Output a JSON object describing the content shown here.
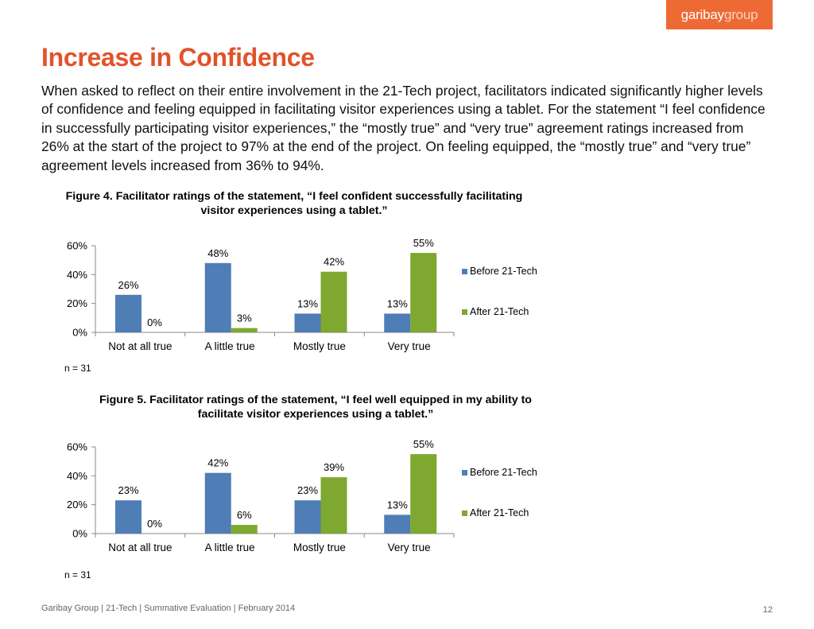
{
  "logo": {
    "part1": "garibay",
    "part2": "group"
  },
  "page": {
    "title": "Increase in Confidence",
    "intro": "When asked to reflect on their entire involvement in the 21-Tech project, facilitators indicated significantly higher levels of confidence and feeling equipped in facilitating visitor experiences using a tablet. For the statement “I feel confidence in successfully participating visitor experiences,” the “mostly true” and “very true” agreement ratings increased from 26% at the start of the project to 97% at the end of the project.  On feeling equipped, the “mostly true” and “very true” agreement levels increased from 36% to 94%.",
    "footer": "Garibay Group | 21-Tech | Summative Evaluation | February 2014",
    "page_number": "12"
  },
  "colors": {
    "title": "#e2522a",
    "before": "#4f7db5",
    "after": "#7ea82f",
    "axis": "#888888"
  },
  "chart_data": [
    {
      "type": "bar",
      "title": "Figure 4. Facilitator ratings of the statement, “I feel confident successfully facilitating visitor experiences using a tablet.”",
      "categories": [
        "Not at all true",
        "A little true",
        "Mostly true",
        "Very true"
      ],
      "series": [
        {
          "name": "Before 21-Tech",
          "values": [
            26,
            48,
            13,
            13
          ],
          "labels": [
            "26%",
            "48%",
            "13%",
            "13%"
          ]
        },
        {
          "name": "After 21-Tech",
          "values": [
            0,
            3,
            42,
            55
          ],
          "labels": [
            "0%",
            "3%",
            "42%",
            "55%"
          ]
        }
      ],
      "ylim": [
        0,
        60
      ],
      "yticks": [
        "0%",
        "20%",
        "40%",
        "60%"
      ],
      "legend": "right",
      "grid": false,
      "note": "n = 31"
    },
    {
      "type": "bar",
      "title": "Figure 5. Facilitator ratings of the statement, “I feel well equipped in my ability to facilitate visitor experiences using a tablet.”",
      "categories": [
        "Not at all true",
        "A little true",
        "Mostly true",
        "Very true"
      ],
      "series": [
        {
          "name": "Before 21-Tech",
          "values": [
            23,
            42,
            23,
            13
          ],
          "labels": [
            "23%",
            "42%",
            "23%",
            "13%"
          ]
        },
        {
          "name": "After 21-Tech",
          "values": [
            0,
            6,
            39,
            55
          ],
          "labels": [
            "0%",
            "6%",
            "39%",
            "55%"
          ]
        }
      ],
      "ylim": [
        0,
        60
      ],
      "yticks": [
        "0%",
        "20%",
        "40%",
        "60%"
      ],
      "legend": "right",
      "grid": false,
      "note": "n = 31"
    }
  ]
}
